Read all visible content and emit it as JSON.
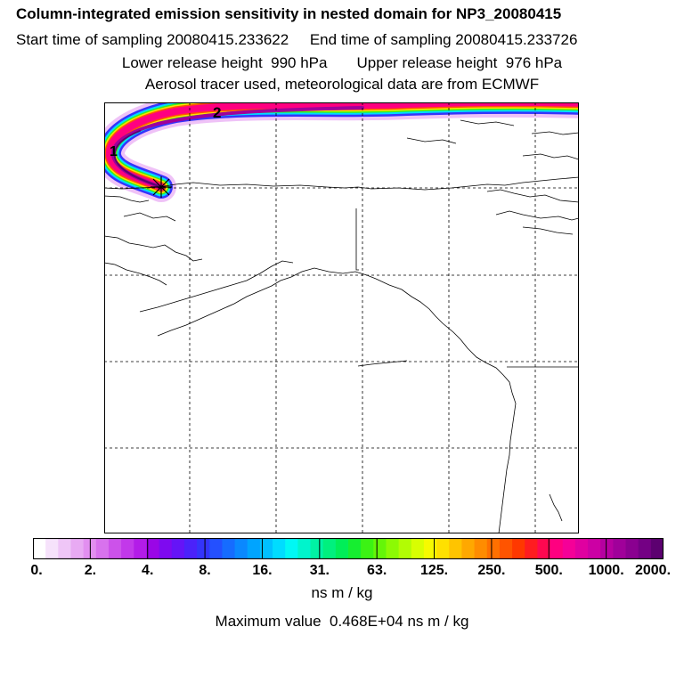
{
  "title": "Column-integrated emission sensitivity in nested domain for NP3_20080415",
  "start_label": "Start time of sampling 20080415.233622",
  "end_label": "End time of sampling 20080415.233726",
  "lower_label": "Lower release height  990 hPa",
  "upper_label": "Upper release height  976 hPa",
  "tracer_line": "Aerosol tracer used, meteorological data are from ECMWF",
  "units": "ns m / kg",
  "max_line": "Maximum value  0.468E+04 ns m / kg",
  "map_labels": [
    "2",
    "1"
  ],
  "colorbar": {
    "ticks": [
      "0.",
      "2.",
      "4.",
      "8.",
      "16.",
      "31.",
      "63.",
      "125.",
      "250.",
      "500.",
      "1000.",
      "2000."
    ],
    "colors": [
      "#ffffff",
      "#f6e2fb",
      "#efc6f7",
      "#e8aaf3",
      "#e28ff0",
      "#d872ed",
      "#cc52ea",
      "#c238ea",
      "#b31ce8",
      "#9a06e6",
      "#7e0af0",
      "#6514f7",
      "#4b22fa",
      "#3434fb",
      "#2450ff",
      "#166cff",
      "#0a88ff",
      "#00a4ff",
      "#00c0ff",
      "#00dcff",
      "#00f8f4",
      "#00f4cc",
      "#00f2a4",
      "#00f07e",
      "#00ee58",
      "#16ee30",
      "#3cf214",
      "#64f608",
      "#8cfa04",
      "#b2fc04",
      "#d8fe02",
      "#f6fa00",
      "#ffe000",
      "#ffc400",
      "#ffa800",
      "#ff8c00",
      "#ff7000",
      "#ff5400",
      "#ff3800",
      "#ff1c20",
      "#ff0850",
      "#ff0080",
      "#f50098",
      "#e000a0",
      "#cc00a4",
      "#b600a0",
      "#a0009a",
      "#8a0090",
      "#740084",
      "#5c0070"
    ]
  }
}
